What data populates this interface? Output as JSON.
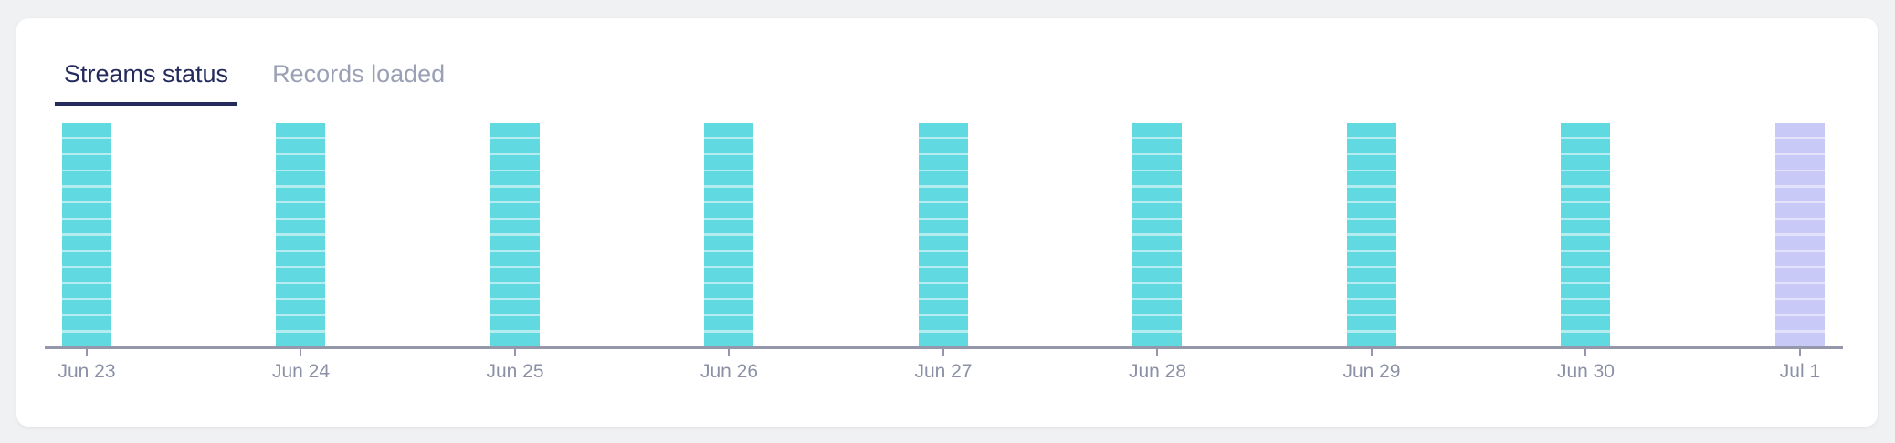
{
  "tabs": [
    {
      "label": "Streams status",
      "active": true
    },
    {
      "label": "Records loaded",
      "active": false
    }
  ],
  "chart_data": {
    "type": "bar",
    "variant": "striped-status-columns",
    "title": "Streams status",
    "categories": [
      "Jun 23",
      "Jun 24",
      "Jun 25",
      "Jun 26",
      "Jun 27",
      "Jun 28",
      "Jun 29",
      "Jun 30",
      "Jul 1"
    ],
    "values": [
      14,
      14,
      14,
      14,
      14,
      14,
      14,
      14,
      14
    ],
    "values_note": "segments per column; all columns equal full height",
    "bar_colors": [
      "teal",
      "teal",
      "teal",
      "teal",
      "teal",
      "teal",
      "teal",
      "teal",
      "lavender"
    ],
    "palette": {
      "teal": {
        "fill": "#60d9e1",
        "separator": "#b5ecef"
      },
      "lavender": {
        "fill": "#c8c9f6",
        "separator": "#e2e2fa"
      }
    },
    "xlabel": "",
    "ylabel": "",
    "legend": "none",
    "grid": false,
    "axis_color": "#9598ab",
    "tick_label_color": "#8b90a6"
  },
  "colors": {
    "page_background": "#f0f1f3",
    "card_background": "#ffffff",
    "tab_active": "#232a5c",
    "tab_active_underline": "#232a5c",
    "tab_inactive": "#9ba0b5"
  }
}
